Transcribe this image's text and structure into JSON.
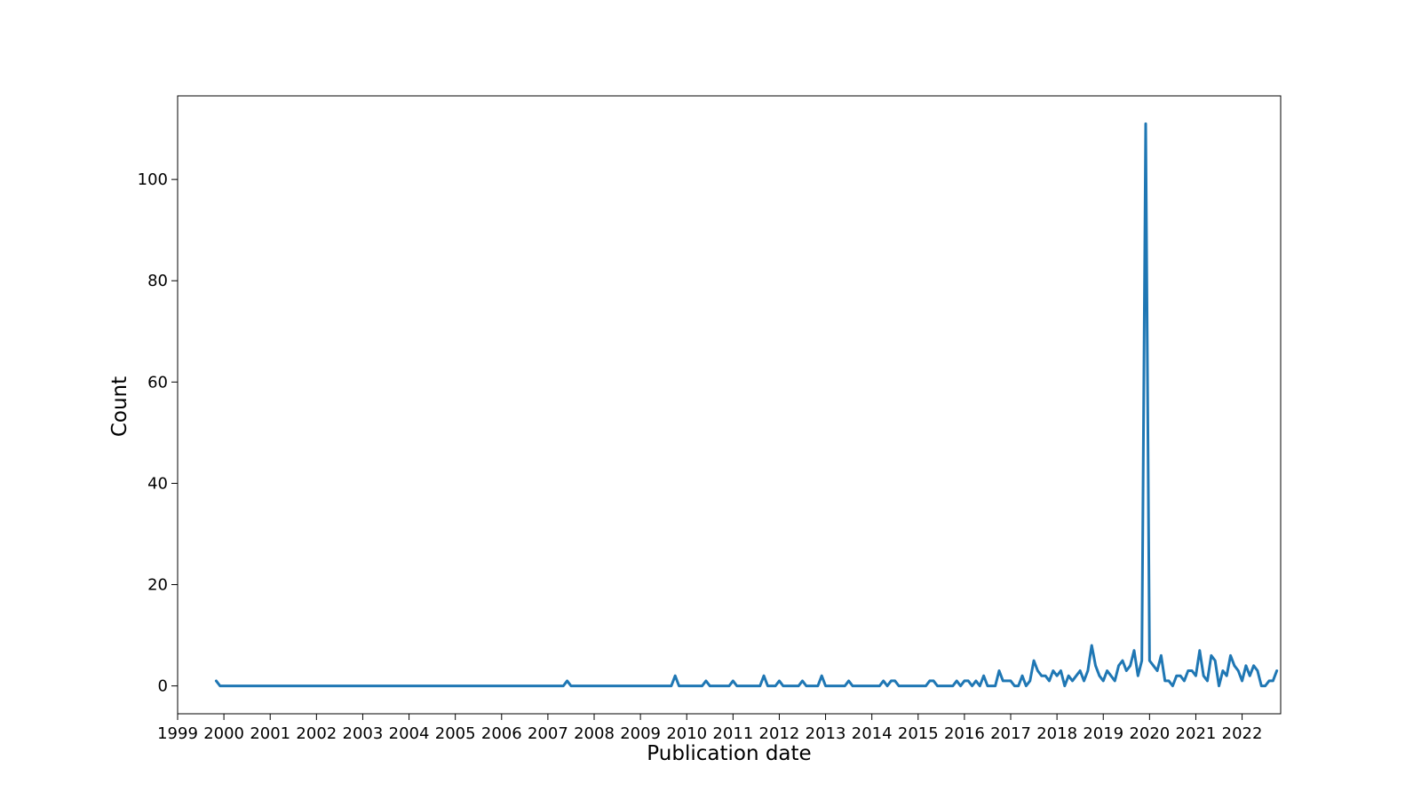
{
  "chart_data": {
    "type": "line",
    "title": "",
    "xlabel": "Publication date",
    "ylabel": "Count",
    "grid": false,
    "legend": "none",
    "xlim": [
      "1999-01",
      "2022-11"
    ],
    "ylim": [
      -5.5,
      116.5
    ],
    "yticks": [
      0,
      20,
      40,
      60,
      80,
      100
    ],
    "xticks": [
      "1999",
      "2000",
      "2001",
      "2002",
      "2003",
      "2004",
      "2005",
      "2006",
      "2007",
      "2008",
      "2009",
      "2010",
      "2011",
      "2012",
      "2013",
      "2014",
      "2015",
      "2016",
      "2017",
      "2018",
      "2019",
      "2020",
      "2021",
      "2022"
    ],
    "line_color": "#1f77b4",
    "x": [
      "1999-11",
      "1999-12",
      "2007-05",
      "2007-06",
      "2007-07",
      "2009-09",
      "2009-10",
      "2009-11",
      "2010-05",
      "2010-06",
      "2010-07",
      "2010-12",
      "2011-01",
      "2011-02",
      "2011-08",
      "2011-09",
      "2011-10",
      "2011-12",
      "2012-01",
      "2012-02",
      "2012-06",
      "2012-07",
      "2012-08",
      "2012-11",
      "2012-12",
      "2013-01",
      "2013-06",
      "2013-07",
      "2013-08",
      "2014-03",
      "2014-04",
      "2014-05",
      "2014-06",
      "2014-07",
      "2014-08",
      "2015-03",
      "2015-04",
      "2015-05",
      "2015-06",
      "2015-07",
      "2015-10",
      "2015-11",
      "2015-12",
      "2016-01",
      "2016-02",
      "2016-03",
      "2016-04",
      "2016-05",
      "2016-06",
      "2016-07",
      "2016-08",
      "2016-09",
      "2016-10",
      "2016-11",
      "2016-12",
      "2017-01",
      "2017-02",
      "2017-03",
      "2017-04",
      "2017-05",
      "2017-06",
      "2017-07",
      "2017-08",
      "2017-09",
      "2017-10",
      "2017-11",
      "2017-12",
      "2018-01",
      "2018-02",
      "2018-03",
      "2018-04",
      "2018-05",
      "2018-06",
      "2018-07",
      "2018-08",
      "2018-09",
      "2018-10",
      "2018-11",
      "2018-12",
      "2019-01",
      "2019-02",
      "2019-03",
      "2019-04",
      "2019-05",
      "2019-06",
      "2019-07",
      "2019-08",
      "2019-09",
      "2019-10",
      "2019-11",
      "2019-12",
      "2020-01",
      "2020-02",
      "2020-03",
      "2020-04",
      "2020-05",
      "2020-06",
      "2020-07",
      "2020-08",
      "2020-09",
      "2020-10",
      "2020-11",
      "2020-12",
      "2021-01",
      "2021-02",
      "2021-03",
      "2021-04",
      "2021-05",
      "2021-06",
      "2021-07",
      "2021-08",
      "2021-09",
      "2021-10",
      "2021-11",
      "2021-12",
      "2022-01",
      "2022-02",
      "2022-03",
      "2022-04",
      "2022-05",
      "2022-06",
      "2022-07",
      "2022-08",
      "2022-09",
      "2022-10"
    ],
    "values": [
      1,
      0,
      0,
      1,
      0,
      0,
      2,
      0,
      0,
      1,
      0,
      0,
      1,
      0,
      0,
      2,
      0,
      0,
      1,
      0,
      0,
      1,
      0,
      0,
      2,
      0,
      0,
      1,
      0,
      0,
      1,
      0,
      1,
      1,
      0,
      0,
      1,
      1,
      0,
      0,
      0,
      1,
      0,
      1,
      1,
      0,
      1,
      0,
      2,
      0,
      0,
      0,
      3,
      1,
      1,
      1,
      0,
      0,
      2,
      0,
      1,
      5,
      3,
      2,
      2,
      1,
      3,
      2,
      3,
      0,
      2,
      1,
      2,
      3,
      1,
      3,
      8,
      4,
      2,
      1,
      3,
      2,
      1,
      4,
      5,
      3,
      4,
      7,
      2,
      5,
      111,
      5,
      4,
      3,
      6,
      1,
      1,
      0,
      2,
      2,
      1,
      3,
      3,
      2,
      7,
      2,
      1,
      6,
      5,
      0,
      3,
      2,
      6,
      4,
      3,
      1,
      4,
      2,
      4,
      3,
      0,
      0,
      1,
      1,
      3
    ]
  }
}
